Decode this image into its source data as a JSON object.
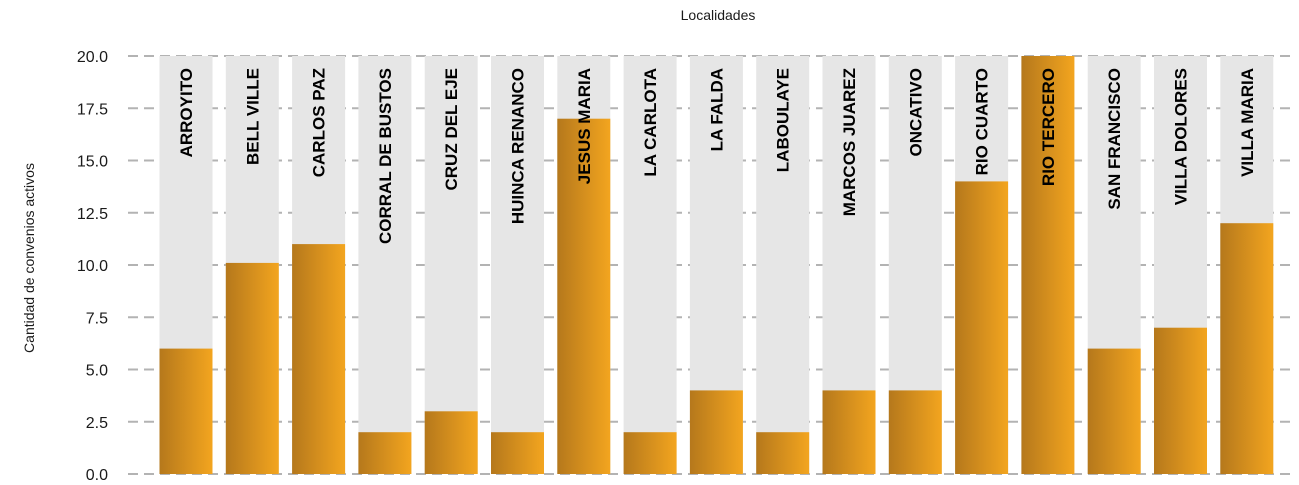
{
  "chart_data": {
    "type": "bar",
    "title": "",
    "xlabel": "Localidades",
    "ylabel": "Cantidad de convenios activos",
    "ylim": [
      0,
      20
    ],
    "yticks": [
      "0.0",
      "2.5",
      "5.0",
      "7.5",
      "10.0",
      "12.5",
      "15.0",
      "17.5",
      "20.0"
    ],
    "categories": [
      "ARROYITO",
      "BELL VILLE",
      "CARLOS PAZ",
      "CORRAL DE BUSTOS",
      "CRUZ DEL EJE",
      "HUINCA RENANCO",
      "JESUS MARIA",
      "LA CARLOTA",
      "LA FALDA",
      "LABOULAYE",
      "MARCOS JUAREZ",
      "ONCATIVO",
      "RIO CUARTO",
      "RIO TERCERO",
      "SAN FRANCISCO",
      "VILLA DOLORES",
      "VILLA MARIA"
    ],
    "values": [
      6,
      10.1,
      11,
      2,
      3,
      2,
      17,
      2,
      4,
      2,
      4,
      4,
      14,
      20,
      6,
      7,
      12
    ],
    "grid": true,
    "background_bars": true,
    "legend": "none",
    "colors": {
      "bar_dark": "#b5781c",
      "bar_light": "#f3a51f",
      "background_bar": "#e6e6e6",
      "grid": "#b3b3b3"
    }
  }
}
